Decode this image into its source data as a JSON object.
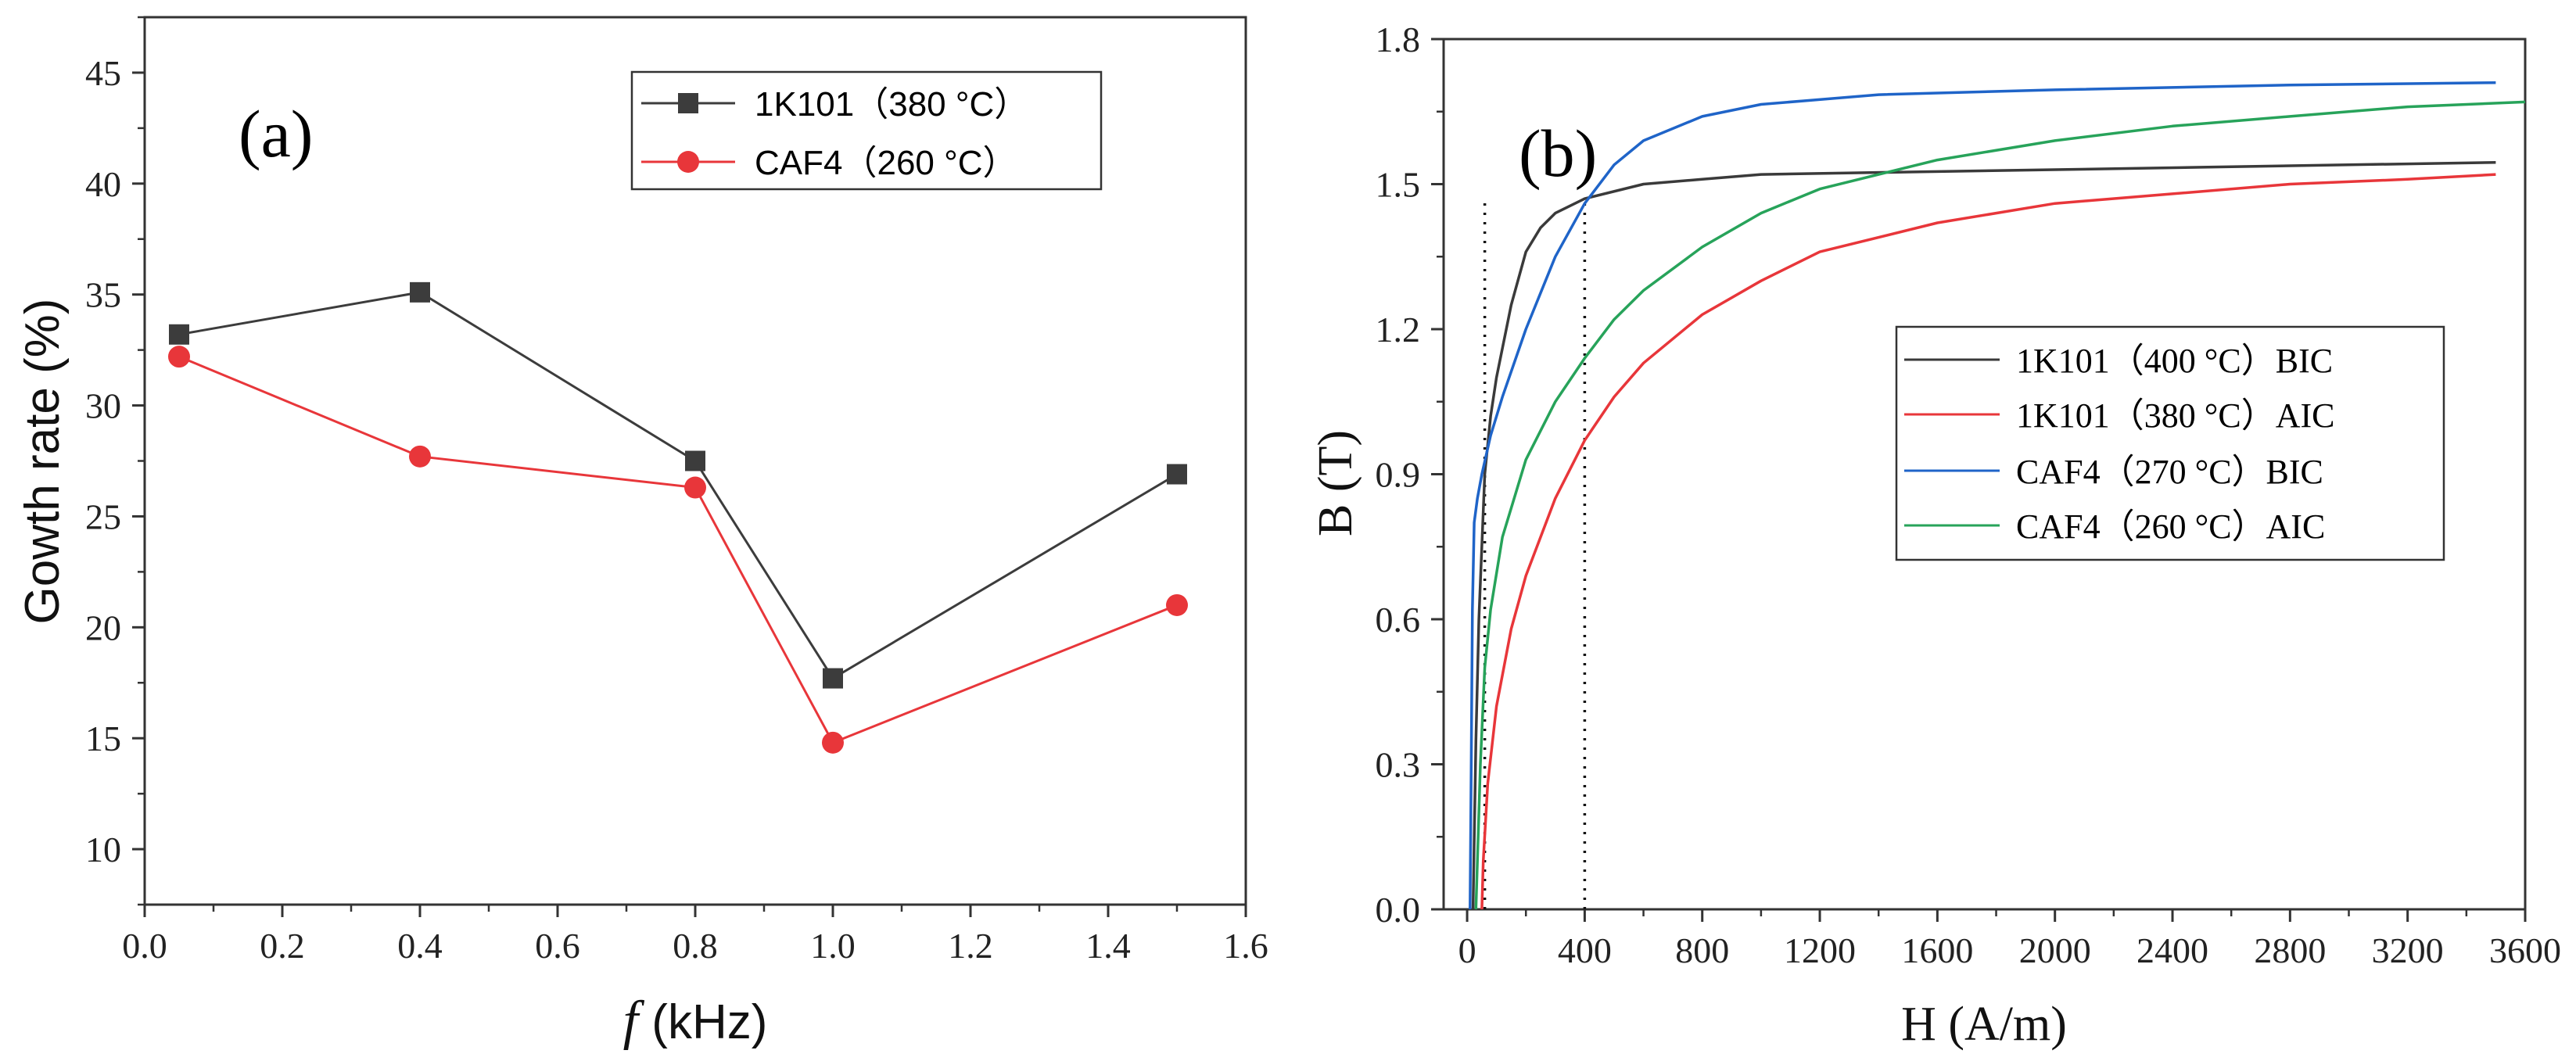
{
  "chart_data": [
    {
      "type": "line",
      "panel_label": "(a)",
      "xlabel_italic": "f",
      "xlabel": " (kHz)",
      "ylabel": "Gowth rate (%)",
      "xlim": [
        0.0,
        1.6
      ],
      "ylim": [
        7.5,
        47.5
      ],
      "xticks": [
        0.0,
        0.2,
        0.4,
        0.6,
        0.8,
        1.0,
        1.2,
        1.4,
        1.6
      ],
      "xtick_labels": [
        "0.0",
        "0.2",
        "0.4",
        "0.6",
        "0.8",
        "1.0",
        "1.2",
        "1.4",
        "1.6"
      ],
      "yticks": [
        10,
        15,
        20,
        25,
        30,
        35,
        40,
        45
      ],
      "ytick_labels": [
        "10",
        "15",
        "20",
        "25",
        "30",
        "35",
        "40",
        "45"
      ],
      "legend_position": "top-right",
      "series": [
        {
          "name": "1K101（380 °C）",
          "color": "#3c3c3c",
          "marker": "square",
          "x": [
            0.05,
            0.4,
            0.8,
            1.0,
            1.5
          ],
          "values": [
            33.2,
            35.1,
            27.5,
            17.7,
            26.9
          ]
        },
        {
          "name": "CAF4（260 °C）",
          "color": "#e8363a",
          "marker": "circle",
          "x": [
            0.05,
            0.4,
            0.8,
            1.0,
            1.5
          ],
          "values": [
            32.2,
            27.7,
            26.3,
            14.8,
            21.0
          ]
        }
      ]
    },
    {
      "type": "line",
      "panel_label": "(b)",
      "xlabel": "H (A/m)",
      "ylabel": "B (T)",
      "xlim": [
        -80,
        3600
      ],
      "ylim": [
        0.0,
        1.8
      ],
      "xticks": [
        0,
        400,
        800,
        1200,
        1600,
        2000,
        2400,
        2800,
        3200,
        3600
      ],
      "xtick_labels": [
        "0",
        "400",
        "800",
        "1200",
        "1600",
        "2000",
        "2400",
        "2800",
        "3200",
        "3600"
      ],
      "yticks": [
        0.0,
        0.3,
        0.6,
        0.9,
        1.2,
        1.5,
        1.8
      ],
      "ytick_labels": [
        "0.0",
        "0.3",
        "0.6",
        "0.9",
        "1.2",
        "1.5",
        "1.8"
      ],
      "legend_position": "center-right",
      "reference_lines_x": [
        60,
        400
      ],
      "series": [
        {
          "name": "1K101（400 °C）BIC",
          "color": "#3a3a3a",
          "x": [
            20,
            30,
            40,
            60,
            80,
            100,
            150,
            200,
            250,
            300,
            400,
            600,
            800,
            1000,
            1500,
            2000,
            2500,
            3000,
            3500
          ],
          "values": [
            0.0,
            0.35,
            0.6,
            0.9,
            1.02,
            1.1,
            1.25,
            1.36,
            1.41,
            1.44,
            1.47,
            1.5,
            1.51,
            1.52,
            1.525,
            1.53,
            1.535,
            1.54,
            1.545
          ]
        },
        {
          "name": "1K101（380 °C）AIC",
          "color": "#e8363a",
          "x": [
            50,
            55,
            70,
            100,
            150,
            200,
            300,
            400,
            500,
            600,
            800,
            1000,
            1200,
            1600,
            2000,
            2400,
            2800,
            3200,
            3500
          ],
          "values": [
            0.0,
            0.1,
            0.26,
            0.42,
            0.58,
            0.69,
            0.85,
            0.97,
            1.06,
            1.13,
            1.23,
            1.3,
            1.36,
            1.42,
            1.46,
            1.48,
            1.5,
            1.51,
            1.52
          ]
        },
        {
          "name": "CAF4（270 °C）BIC",
          "color": "#1f64c8",
          "x": [
            10,
            14,
            18,
            24,
            35,
            50,
            80,
            120,
            200,
            300,
            400,
            500,
            600,
            800,
            1000,
            1400,
            2000,
            2800,
            3500
          ],
          "values": [
            0.0,
            0.3,
            0.62,
            0.8,
            0.85,
            0.9,
            0.98,
            1.06,
            1.2,
            1.35,
            1.46,
            1.54,
            1.59,
            1.64,
            1.665,
            1.685,
            1.695,
            1.705,
            1.71
          ]
        },
        {
          "name": "CAF4（260 °C）AIC",
          "color": "#27a35a",
          "x": [
            30,
            35,
            45,
            60,
            80,
            120,
            200,
            300,
            400,
            500,
            600,
            800,
            1000,
            1200,
            1600,
            2000,
            2400,
            2800,
            3200,
            3600
          ],
          "values": [
            0.0,
            0.1,
            0.3,
            0.5,
            0.62,
            0.77,
            0.93,
            1.05,
            1.14,
            1.22,
            1.28,
            1.37,
            1.44,
            1.49,
            1.55,
            1.59,
            1.62,
            1.64,
            1.66,
            1.67
          ]
        }
      ]
    }
  ]
}
